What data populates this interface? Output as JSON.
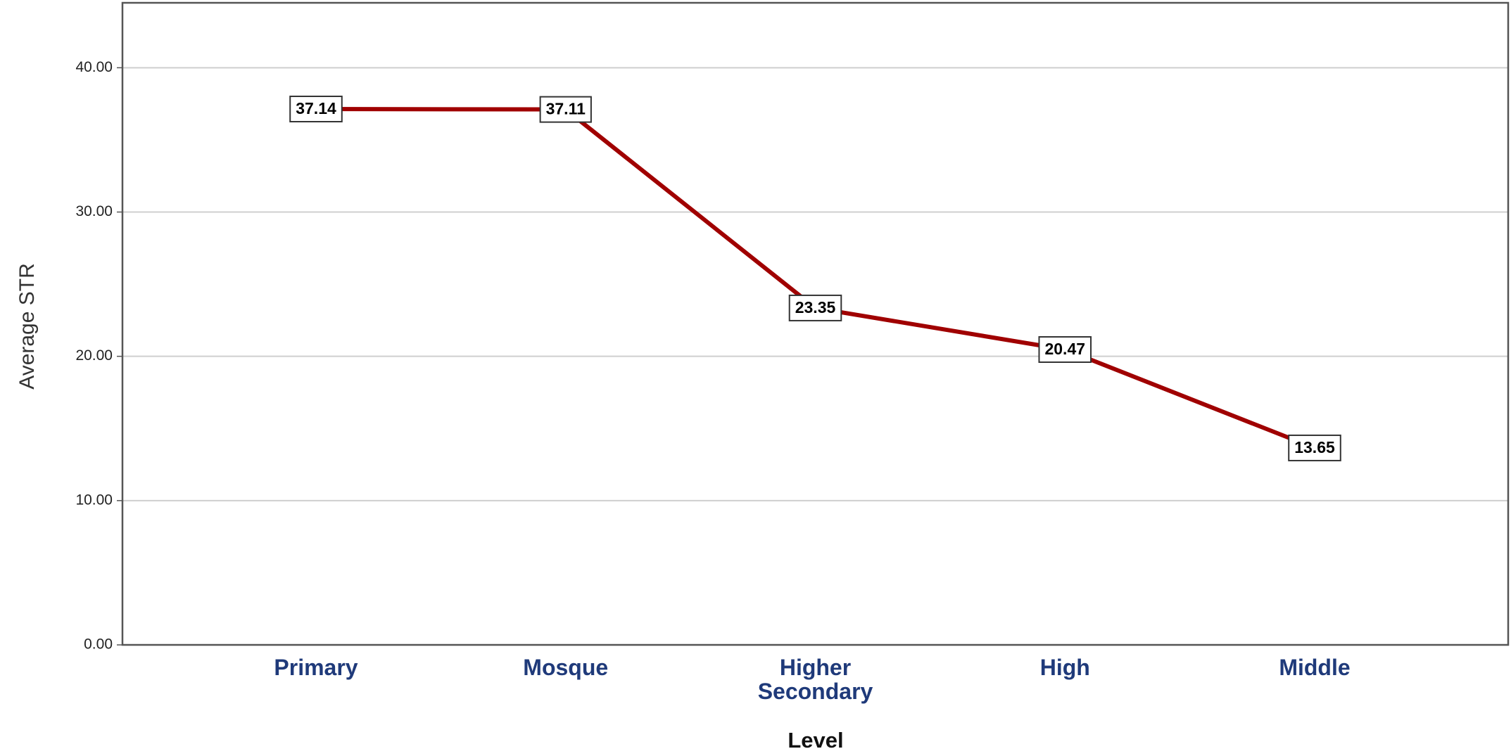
{
  "chart_data": {
    "type": "line",
    "categories": [
      "Primary",
      "Mosque",
      "Higher Secondary",
      "High",
      "Middle"
    ],
    "series": [
      {
        "name": "Average STR",
        "color": "#a00000",
        "values": [
          37.14,
          37.11,
          23.35,
          20.47,
          13.65
        ]
      }
    ],
    "ylabel": "Average STR",
    "xlabel": "Level",
    "ylim": [
      0,
      44.5
    ],
    "yticks": [
      {
        "value": 0,
        "label": "0.00"
      },
      {
        "value": 10,
        "label": "10.00"
      },
      {
        "value": 20,
        "label": "20.00"
      },
      {
        "value": 30,
        "label": "30.00"
      },
      {
        "value": 40,
        "label": "40.00"
      }
    ],
    "grid": true
  }
}
